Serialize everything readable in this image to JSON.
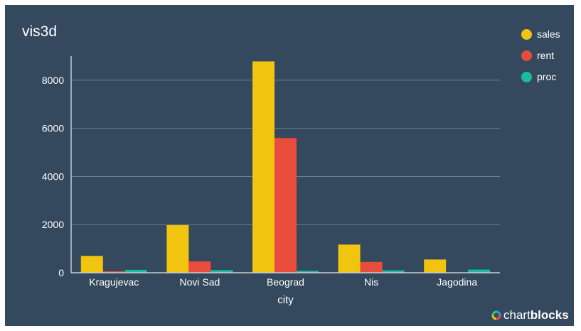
{
  "chart_data": {
    "type": "bar",
    "title": "vis3d",
    "xlabel": "city",
    "ylabel": "",
    "categories": [
      "Kragujevac",
      "Novi Sad",
      "Beograd",
      "Nis",
      "Jagodina"
    ],
    "series": [
      {
        "name": "sales",
        "color": "#f1c40f",
        "values": [
          700,
          1980,
          8780,
          1170,
          550
        ]
      },
      {
        "name": "rent",
        "color": "#e74c3c",
        "values": [
          60,
          470,
          5600,
          450,
          0
        ]
      },
      {
        "name": "proc",
        "color": "#1abc9c",
        "values": [
          120,
          110,
          80,
          100,
          130
        ]
      }
    ],
    "ylim": [
      0,
      9000
    ],
    "yticks": [
      0,
      2000,
      4000,
      6000,
      8000
    ],
    "grid": true,
    "legend_position": "top-right"
  },
  "brand": {
    "prefix": "chart",
    "suffix": "blocks"
  },
  "colors": {
    "background": "#34495e",
    "grid": "#6b7f8e",
    "axis": "#c7ced3"
  }
}
